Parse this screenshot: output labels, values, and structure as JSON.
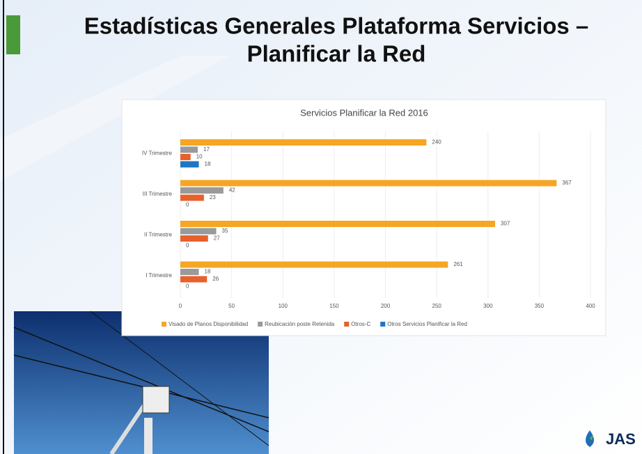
{
  "slide_title": [
    "Estadísticas Generales Plataforma Servicios –",
    "Planificar la Red"
  ],
  "logo_text": "JAS",
  "chart_data": {
    "type": "hbar",
    "title": "Servicios Planificar la Red 2016",
    "categories": [
      "IV Trimestre",
      "III Trimestre",
      "II Trimestre",
      "I Trimestre"
    ],
    "series": [
      {
        "name": "Visado de Planos Disponibilidad",
        "color": "#f5a623",
        "values": [
          240,
          367,
          307,
          261
        ]
      },
      {
        "name": "Reubicación poste Retenida",
        "color": "#9a9a9a",
        "values": [
          17,
          42,
          35,
          18
        ]
      },
      {
        "name": "Otros-C",
        "color": "#e8602c",
        "values": [
          10,
          23,
          27,
          26
        ]
      },
      {
        "name": "Otros Servicios Planificar la Red",
        "color": "#1f77c4",
        "values": [
          18,
          0,
          0,
          0
        ]
      }
    ],
    "xlim": [
      0,
      400
    ],
    "xticks": [
      0,
      50,
      100,
      150,
      200,
      250,
      300,
      350,
      400
    ],
    "grid": true,
    "legend": "bottom",
    "data_labels": true
  }
}
